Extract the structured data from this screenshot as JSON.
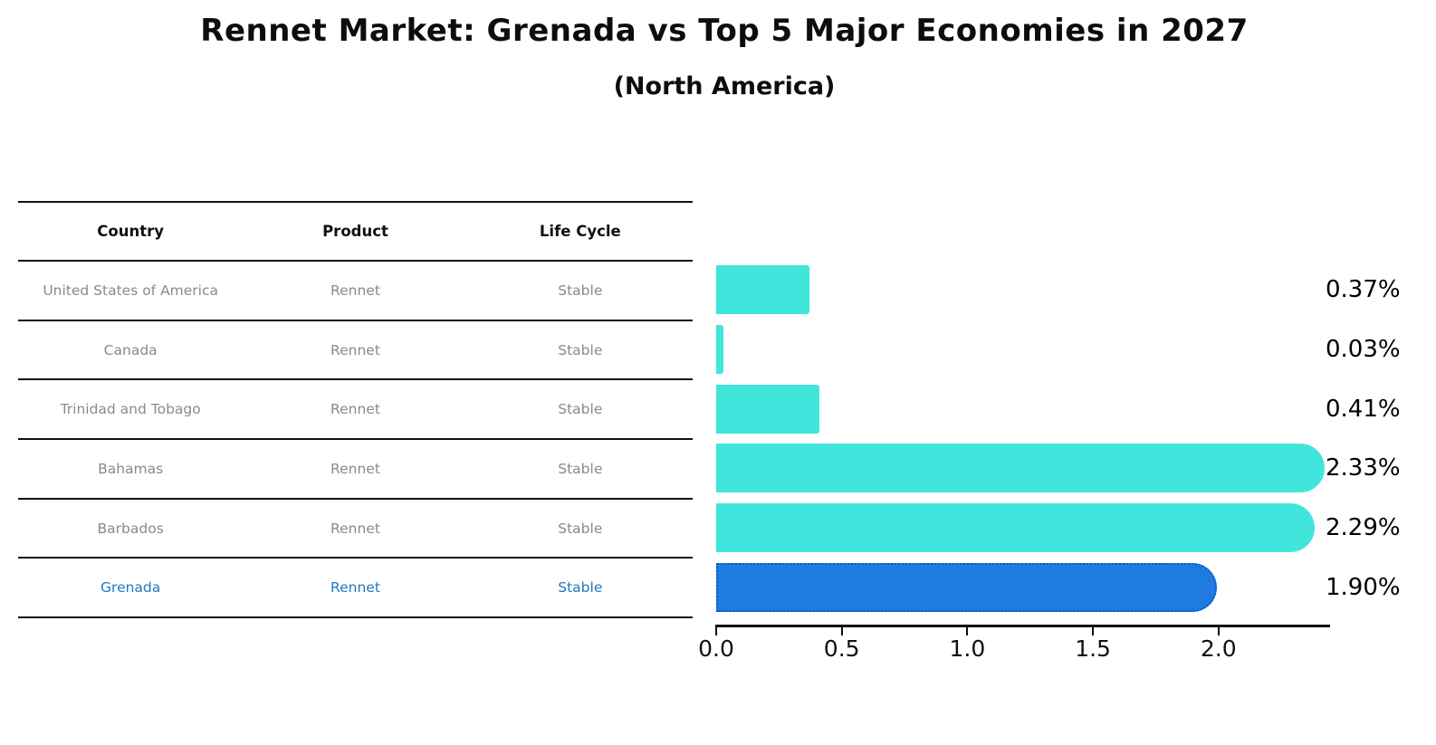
{
  "title": "Rennet Market: Grenada vs Top 5 Major Economies in 2027",
  "subtitle": "(North America)",
  "table": {
    "headers": [
      "Country",
      "Product",
      "Life Cycle"
    ],
    "rows": [
      {
        "country": "United States of America",
        "product": "Rennet",
        "life_cycle": "Stable",
        "highlight": false
      },
      {
        "country": "Canada",
        "product": "Rennet",
        "life_cycle": "Stable",
        "highlight": false
      },
      {
        "country": "Trinidad and Tobago",
        "product": "Rennet",
        "life_cycle": "Stable",
        "highlight": false
      },
      {
        "country": "Bahamas",
        "product": "Rennet",
        "life_cycle": "Stable",
        "highlight": false
      },
      {
        "country": "Barbados",
        "product": "Rennet",
        "life_cycle": "Stable",
        "highlight": false
      },
      {
        "country": "Grenada",
        "product": "Rennet",
        "life_cycle": "Stable",
        "highlight": true
      }
    ]
  },
  "chart_data": {
    "type": "bar",
    "orientation": "horizontal",
    "title": "Rennet Market: Grenada vs Top 5 Major Economies in 2027",
    "subtitle": "(North America)",
    "categories": [
      "United States of America",
      "Canada",
      "Trinidad and Tobago",
      "Bahamas",
      "Barbados",
      "Grenada"
    ],
    "values": [
      0.37,
      0.03,
      0.41,
      2.33,
      2.29,
      1.9
    ],
    "value_labels": [
      "0.37%",
      "0.03%",
      "0.41%",
      "2.33%",
      "2.29%",
      "1.90%"
    ],
    "highlight_index": 5,
    "xlim": [
      0,
      2.44
    ],
    "x_ticks": [
      0.0,
      0.5,
      1.0,
      1.5,
      2.0
    ],
    "x_tick_labels": [
      "0.0",
      "0.5",
      "1.0",
      "1.5",
      "2.0"
    ],
    "grid": false,
    "legend": false
  },
  "colors": {
    "bar_cyan": "#40e5dc",
    "bar_blue": "#1e7be0",
    "bar_blue_border": "#0a58c8",
    "highlight_text": "#2278c4",
    "row_text": "#8a8a8a",
    "axis": "#111111"
  }
}
